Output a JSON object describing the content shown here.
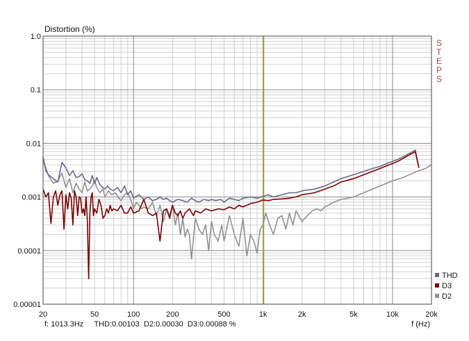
{
  "chart_data": {
    "type": "line",
    "title": "Distortion (%)",
    "xlabel": "f (Hz)",
    "ylabel": "Distortion (%)",
    "x_scale": "log",
    "y_scale": "log",
    "xlim": [
      20,
      20000
    ],
    "ylim": [
      1e-05,
      1.0
    ],
    "grid": true,
    "legend_position": "bottom-right",
    "x_ticks": [
      {
        "value": 20,
        "label": "20"
      },
      {
        "value": 50,
        "label": "50"
      },
      {
        "value": 100,
        "label": "100"
      },
      {
        "value": 200,
        "label": "200"
      },
      {
        "value": 500,
        "label": "500"
      },
      {
        "value": 1000,
        "label": "1k"
      },
      {
        "value": 2000,
        "label": "2k"
      },
      {
        "value": 5000,
        "label": "5k"
      },
      {
        "value": 10000,
        "label": "10k"
      },
      {
        "value": 20000,
        "label": "20k"
      }
    ],
    "y_ticks": [
      {
        "value": 1.0,
        "label": "1.0"
      },
      {
        "value": 0.1,
        "label": "0.1"
      },
      {
        "value": 0.01,
        "label": "0.01"
      },
      {
        "value": 0.001,
        "label": "0.001"
      },
      {
        "value": 0.0001,
        "label": "0.0001"
      },
      {
        "value": 1e-05,
        "label": "0.00001"
      }
    ],
    "cursor": {
      "frequency": 1013.3,
      "color": "#a8a020"
    },
    "watermark": "STEPS",
    "readout": "f: 1013.3Hz     THD:0.00103  D2:0.00030  D3:0.00088 %",
    "series": [
      {
        "name": "THD",
        "color": "#666a86",
        "x": [
          20,
          21,
          22,
          24,
          26,
          28,
          30,
          32,
          34,
          36,
          38,
          40,
          42,
          44,
          46,
          48,
          50,
          52,
          55,
          58,
          60,
          63,
          66,
          70,
          75,
          80,
          85,
          90,
          95,
          100,
          110,
          120,
          130,
          140,
          150,
          160,
          170,
          180,
          190,
          200,
          220,
          240,
          260,
          280,
          300,
          320,
          350,
          380,
          400,
          430,
          470,
          500,
          550,
          600,
          650,
          700,
          800,
          900,
          1000,
          1100,
          1200,
          1400,
          1600,
          1800,
          2000,
          2500,
          3000,
          3500,
          4000,
          5000,
          6000,
          7000,
          8000,
          9000,
          10000,
          11000,
          12000,
          13000,
          14000,
          15000,
          16000
        ],
        "values": [
          0.0056,
          0.0031,
          0.0026,
          0.0022,
          0.0019,
          0.0044,
          0.0035,
          0.0025,
          0.0031,
          0.0023,
          0.0024,
          0.0027,
          0.0021,
          0.002,
          0.0018,
          0.0025,
          0.0018,
          0.0023,
          0.0017,
          0.0015,
          0.0014,
          0.0016,
          0.0014,
          0.0013,
          0.0015,
          0.0012,
          0.0016,
          0.0011,
          0.0013,
          0.00095,
          0.0011,
          0.0009,
          0.001,
          0.00085,
          0.0009,
          0.001,
          0.0009,
          0.00095,
          0.00085,
          0.0008,
          0.0009,
          0.00085,
          0.0008,
          0.00095,
          0.00085,
          0.0008,
          0.0009,
          0.00085,
          0.0009,
          0.00085,
          0.0009,
          0.0008,
          0.00095,
          0.0009,
          0.00085,
          0.00095,
          0.001,
          0.00095,
          0.00103,
          0.0011,
          0.001,
          0.0011,
          0.0012,
          0.0012,
          0.0013,
          0.0014,
          0.0016,
          0.0019,
          0.0022,
          0.0026,
          0.003,
          0.0034,
          0.0037,
          0.0042,
          0.0046,
          0.005,
          0.0056,
          0.0062,
          0.0068,
          0.0075,
          0.0035
        ]
      },
      {
        "name": "D3",
        "color": "#7a0000",
        "x": [
          20,
          21,
          22,
          23,
          24,
          25,
          26,
          27,
          28,
          29,
          30,
          31,
          32,
          33,
          34,
          35,
          36,
          37,
          38,
          39,
          40,
          41,
          42,
          43,
          44,
          45,
          46,
          47,
          48,
          49,
          50,
          52,
          54,
          56,
          58,
          60,
          62,
          64,
          66,
          68,
          70,
          75,
          80,
          85,
          90,
          95,
          100,
          110,
          120,
          130,
          140,
          150,
          160,
          170,
          180,
          190,
          200,
          210,
          220,
          230,
          240,
          250,
          270,
          290,
          300,
          330,
          360,
          400,
          450,
          500,
          550,
          600,
          650,
          700,
          800,
          900,
          1000,
          1100,
          1200,
          1400,
          1600,
          1800,
          2000,
          2500,
          3000,
          3500,
          4000,
          5000,
          6000,
          7000,
          8000,
          9000,
          10000,
          11000,
          12000,
          13000,
          14000,
          15000,
          16000
        ],
        "values": [
          0.0014,
          0.001,
          0.0012,
          0.00032,
          0.001,
          0.0013,
          0.0007,
          0.0011,
          0.0013,
          0.00025,
          0.0011,
          0.0006,
          0.0012,
          0.00095,
          0.0003,
          0.0013,
          0.001,
          0.00045,
          0.001,
          0.00095,
          0.0005,
          0.0006,
          0.00045,
          0.001,
          0.00035,
          3e-05,
          0.0005,
          0.001,
          0.0012,
          0.00045,
          0.0006,
          0.0005,
          0.0009,
          0.0007,
          0.0004,
          0.00045,
          0.0006,
          0.0005,
          0.0007,
          0.00055,
          0.0006,
          0.00055,
          0.0007,
          0.0005,
          0.0005,
          0.00065,
          0.0005,
          0.00055,
          0.0009,
          0.0005,
          0.00045,
          0.0005,
          0.00015,
          0.00055,
          0.0006,
          0.0004,
          0.0007,
          0.0005,
          0.00045,
          0.00055,
          0.0004,
          0.0005,
          0.0006,
          0.00045,
          0.00055,
          0.0005,
          0.0006,
          0.00055,
          0.0006,
          0.00058,
          0.00065,
          0.0006,
          0.0007,
          0.00065,
          0.00075,
          0.0008,
          0.00088,
          0.00085,
          0.0009,
          0.00092,
          0.00095,
          0.001,
          0.0011,
          0.0012,
          0.0014,
          0.0016,
          0.0019,
          0.0022,
          0.0026,
          0.003,
          0.0034,
          0.0038,
          0.0042,
          0.0046,
          0.0052,
          0.0058,
          0.0064,
          0.007,
          0.0035
        ]
      },
      {
        "name": "D2",
        "color": "#909090",
        "x": [
          20,
          22,
          24,
          26,
          28,
          30,
          32,
          34,
          36,
          38,
          40,
          42,
          44,
          46,
          48,
          50,
          52,
          55,
          58,
          60,
          64,
          68,
          72,
          76,
          80,
          85,
          90,
          95,
          100,
          105,
          110,
          115,
          120,
          130,
          140,
          150,
          160,
          170,
          180,
          190,
          200,
          210,
          220,
          230,
          240,
          250,
          260,
          270,
          280,
          300,
          320,
          340,
          360,
          380,
          400,
          420,
          450,
          480,
          500,
          550,
          600,
          650,
          700,
          750,
          800,
          850,
          900,
          950,
          1000,
          1050,
          1100,
          1200,
          1300,
          1400,
          1500,
          1600,
          1700,
          1800,
          2000,
          2200,
          2400,
          2600,
          2800,
          3000,
          3200,
          3500,
          4000,
          5000,
          6000,
          7000,
          8000,
          9000,
          10000,
          12000,
          14000,
          16000,
          18000,
          20000
        ],
        "values": [
          0.005,
          0.0025,
          0.0018,
          0.002,
          0.0028,
          0.0015,
          0.0022,
          0.0012,
          0.0018,
          0.0014,
          0.0012,
          0.0019,
          0.0013,
          0.0014,
          0.0016,
          0.002,
          0.0015,
          0.0012,
          0.0014,
          0.001,
          0.0013,
          0.0011,
          0.0012,
          0.001,
          0.00085,
          0.0011,
          0.0012,
          0.0009,
          0.0006,
          0.0008,
          0.0007,
          0.0006,
          0.00065,
          0.0006,
          0.0008,
          0.00045,
          0.0007,
          0.00035,
          0.0006,
          0.00045,
          0.0007,
          0.0003,
          0.0005,
          0.0002,
          0.0004,
          0.00018,
          0.00025,
          0.0002,
          7e-05,
          0.0004,
          0.00025,
          0.0002,
          0.0003,
          0.0001,
          0.00035,
          0.0002,
          0.00015,
          0.0003,
          0.00015,
          0.00045,
          0.0002,
          0.00012,
          0.0004,
          8e-05,
          0.0002,
          0.00015,
          9e-05,
          0.00025,
          0.0003,
          0.0005,
          0.00035,
          0.0002,
          0.0004,
          0.00045,
          0.00025,
          0.0005,
          0.0003,
          0.00055,
          0.00035,
          0.00045,
          0.00055,
          0.0006,
          0.00055,
          0.00065,
          0.0007,
          0.0008,
          0.0009,
          0.001,
          0.0012,
          0.0014,
          0.0016,
          0.0018,
          0.002,
          0.0023,
          0.0027,
          0.0031,
          0.0034,
          0.004
        ]
      }
    ]
  }
}
